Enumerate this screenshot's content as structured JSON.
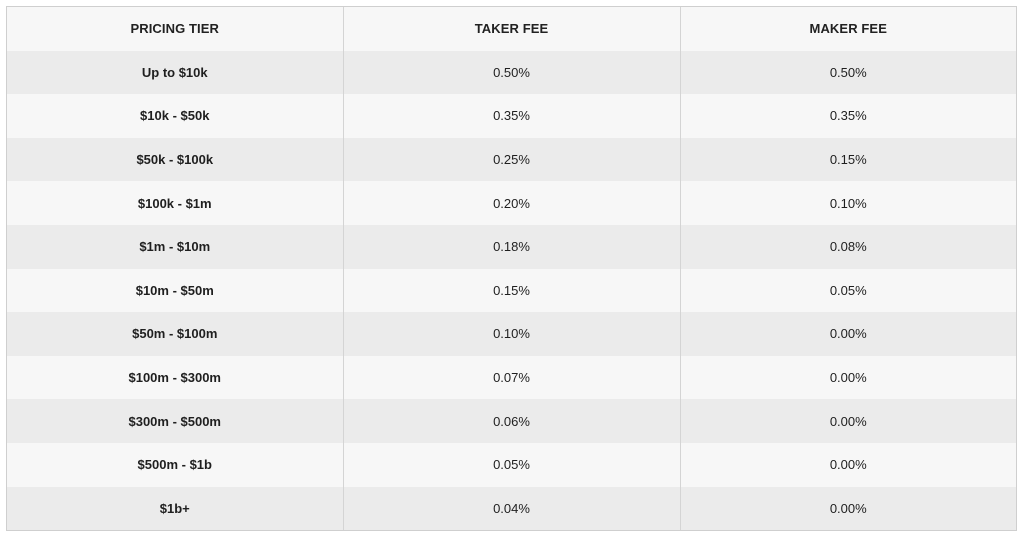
{
  "table": {
    "headers": [
      "PRICING TIER",
      "TAKER FEE",
      "MAKER FEE"
    ],
    "rows": [
      {
        "tier": "Up to $10k",
        "taker": "0.50%",
        "maker": "0.50%"
      },
      {
        "tier": "$10k - $50k",
        "taker": "0.35%",
        "maker": "0.35%"
      },
      {
        "tier": "$50k - $100k",
        "taker": "0.25%",
        "maker": "0.15%"
      },
      {
        "tier": "$100k - $1m",
        "taker": "0.20%",
        "maker": "0.10%"
      },
      {
        "tier": "$1m - $10m",
        "taker": "0.18%",
        "maker": "0.08%"
      },
      {
        "tier": "$10m - $50m",
        "taker": "0.15%",
        "maker": "0.05%"
      },
      {
        "tier": "$50m - $100m",
        "taker": "0.10%",
        "maker": "0.00%"
      },
      {
        "tier": "$100m - $300m",
        "taker": "0.07%",
        "maker": "0.00%"
      },
      {
        "tier": "$300m - $500m",
        "taker": "0.06%",
        "maker": "0.00%"
      },
      {
        "tier": "$500m - $1b",
        "taker": "0.05%",
        "maker": "0.00%"
      },
      {
        "tier": "$1b+",
        "taker": "0.04%",
        "maker": "0.00%"
      }
    ]
  }
}
